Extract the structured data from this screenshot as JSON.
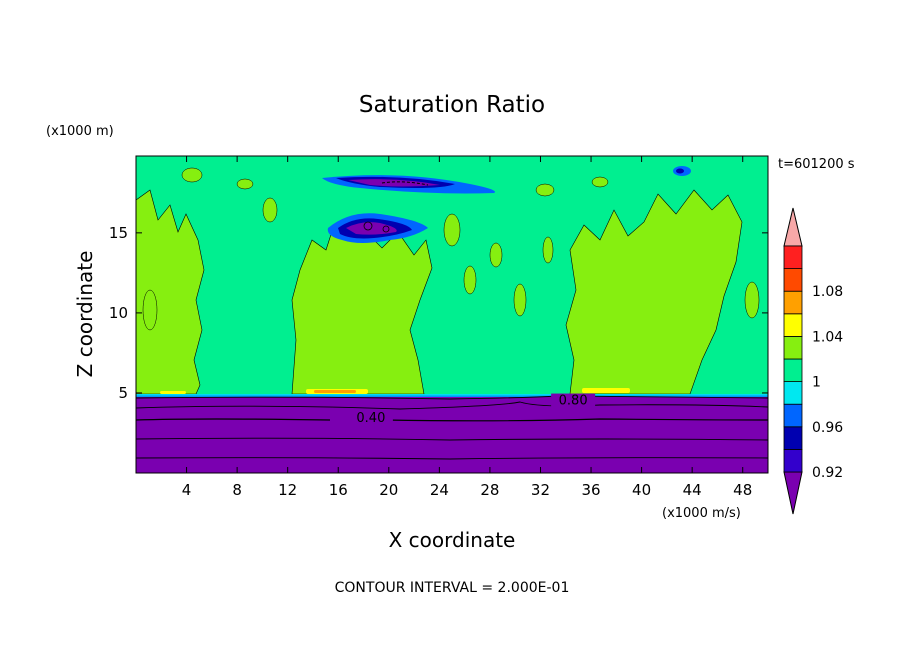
{
  "chart_data": {
    "type": "heatmap",
    "title": "Saturation Ratio",
    "xlabel": "X coordinate",
    "ylabel": "Z coordinate",
    "x_unit": "(x1000 m/s)",
    "y_unit": "(x1000 m)",
    "time_label": "t=601200 s",
    "contour_interval_label": "CONTOUR INTERVAL = 2.000E-01",
    "xlim": [
      0,
      50
    ],
    "ylim": [
      0,
      19.8
    ],
    "x_ticks": [
      4,
      8,
      12,
      16,
      20,
      24,
      28,
      32,
      36,
      40,
      44,
      48
    ],
    "y_ticks": [
      5,
      10,
      15
    ],
    "contour_line_labels": [
      {
        "text": "0.40",
        "x": 17.0,
        "z": 3.3
      },
      {
        "text": "0.80",
        "x": 33.0,
        "z": 4.4
      }
    ],
    "colorbar": {
      "tick_labels": [
        "1.08",
        "1.04",
        "1",
        "0.96",
        "0.92"
      ],
      "levels": [
        0.9,
        0.92,
        0.94,
        0.96,
        0.98,
        1.0,
        1.02,
        1.04,
        1.06,
        1.08,
        1.1
      ],
      "colors": [
        "#7a00b0",
        "#3300cc",
        "#0000b0",
        "#0066ff",
        "#00e8f0",
        "#00ef90",
        "#86ef10",
        "#ffff00",
        "#ffa000",
        "#ff4a00",
        "#ff2020",
        "#f8a8a8"
      ],
      "extend": "both"
    },
    "regions": {
      "lower_layer": {
        "z_range": [
          0,
          4.9
        ],
        "value": "below 0.90"
      },
      "upper_background": {
        "z_range": [
          4.9,
          19.8
        ],
        "value": "0.98-1.00"
      },
      "supersaturated_columns_x": [
        [
          0,
          5
        ],
        [
          13,
          23
        ],
        [
          34,
          44
        ]
      ],
      "dry_layers": [
        {
          "x": [
            15,
            28
          ],
          "z": [
            18.2,
            18.9
          ]
        },
        {
          "x": [
            16,
            23
          ],
          "z": [
            14.5,
            16.3
          ]
        }
      ]
    }
  }
}
